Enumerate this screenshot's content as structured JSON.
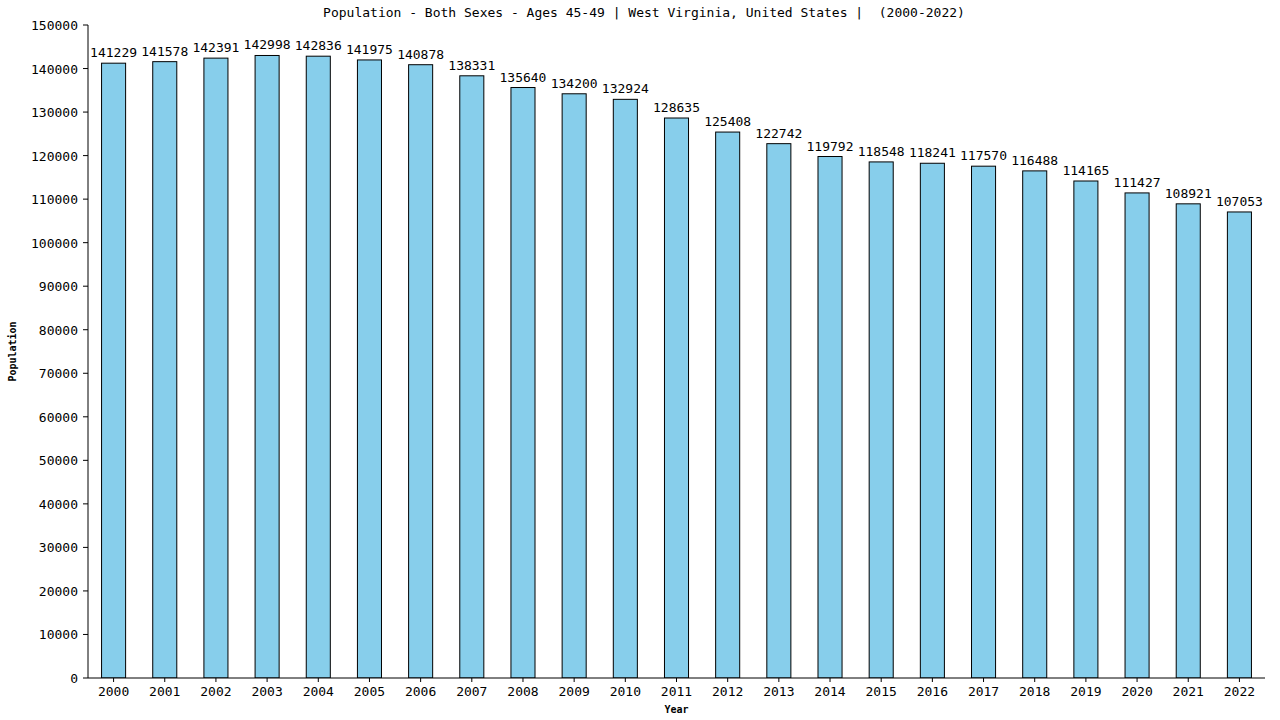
{
  "chart_data": {
    "type": "bar",
    "title": "Population - Both Sexes - Ages 45-49 | West Virginia, United States |  (2000-2022)",
    "xlabel": "Year",
    "ylabel": "Population",
    "categories": [
      "2000",
      "2001",
      "2002",
      "2003",
      "2004",
      "2005",
      "2006",
      "2007",
      "2008",
      "2009",
      "2010",
      "2011",
      "2012",
      "2013",
      "2014",
      "2015",
      "2016",
      "2017",
      "2018",
      "2019",
      "2020",
      "2021",
      "2022"
    ],
    "values": [
      141229,
      141578,
      142391,
      142998,
      142836,
      141975,
      140878,
      138331,
      135640,
      134200,
      132924,
      128635,
      125408,
      122742,
      119792,
      118548,
      118241,
      117570,
      116488,
      114165,
      111427,
      108921,
      107053
    ],
    "color": "#87ceeb",
    "ylim": [
      0,
      150000
    ],
    "yticks": [
      0,
      10000,
      20000,
      30000,
      40000,
      50000,
      60000,
      70000,
      80000,
      90000,
      100000,
      110000,
      120000,
      130000,
      140000,
      150000
    ],
    "grid": false,
    "data_labels": true
  }
}
